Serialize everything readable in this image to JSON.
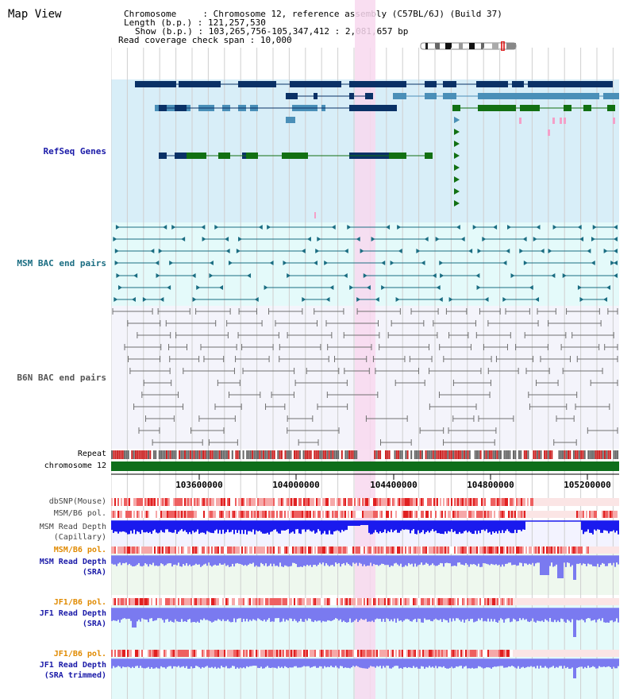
{
  "title": "Map View",
  "header": {
    "chromosome_label": "Chromosome",
    "chromosome_value": "Chromosome 12, reference assembly (C57BL/6J) (Build 37)",
    "length_label": "Length (b.p.)",
    "length_value": "121,257,530",
    "show_label": "Show (b.p.)",
    "show_value": "103,265,756-105,347,412 : 2,081,657 bp",
    "coverage_label": "Read coverage check span",
    "coverage_value": "10,000"
  },
  "tracks": {
    "refseq": "RefSeq Genes",
    "msm_bac": "MSM BAC end pairs",
    "b6n_bac": "B6N BAC end pairs",
    "repeat": "Repeat",
    "chromosome": "chromosome 12",
    "dbsnp": "dbSNP(Mouse)",
    "msm_b6_pol_1": "MSM/B6 pol.",
    "msm_depth_cap_1": "MSM Read Depth",
    "msm_depth_cap_2": "(Capillary)",
    "msm_b6_pol_2": "MSM/B6 pol.",
    "msm_depth_sra_1": "MSM Read Depth",
    "msm_depth_sra_2": "(SRA)",
    "jf1_b6_pol_1": "JF1/B6 pol.",
    "jf1_depth_sra_1": "JF1 Read Depth",
    "jf1_depth_sra_2": "(SRA)",
    "jf1_b6_pol_2": "JF1/B6 pol.",
    "jf1_depth_trim_1": "JF1 Read Depth",
    "jf1_depth_trim_2": "(SRA trimmed)"
  },
  "axis": {
    "ticks": [
      "103600000",
      "104000000",
      "104400000",
      "104800000",
      "105200000"
    ]
  },
  "colors": {
    "refseq_bg": "#d8eef8",
    "bac_bg": "#e4fafa",
    "b6n_bg": "#f4f4fb",
    "highlight": "#f8d8ee",
    "gene_dark": "#0a3166",
    "gene_mid": "#4a8fb8",
    "gene_green": "#127012",
    "bac_teal": "#1a6d82",
    "bac_gray": "#707070",
    "chrom_green": "#0f6e1b",
    "depth_blue": "#1a1aee",
    "depth_light": "#7a7af0"
  }
}
